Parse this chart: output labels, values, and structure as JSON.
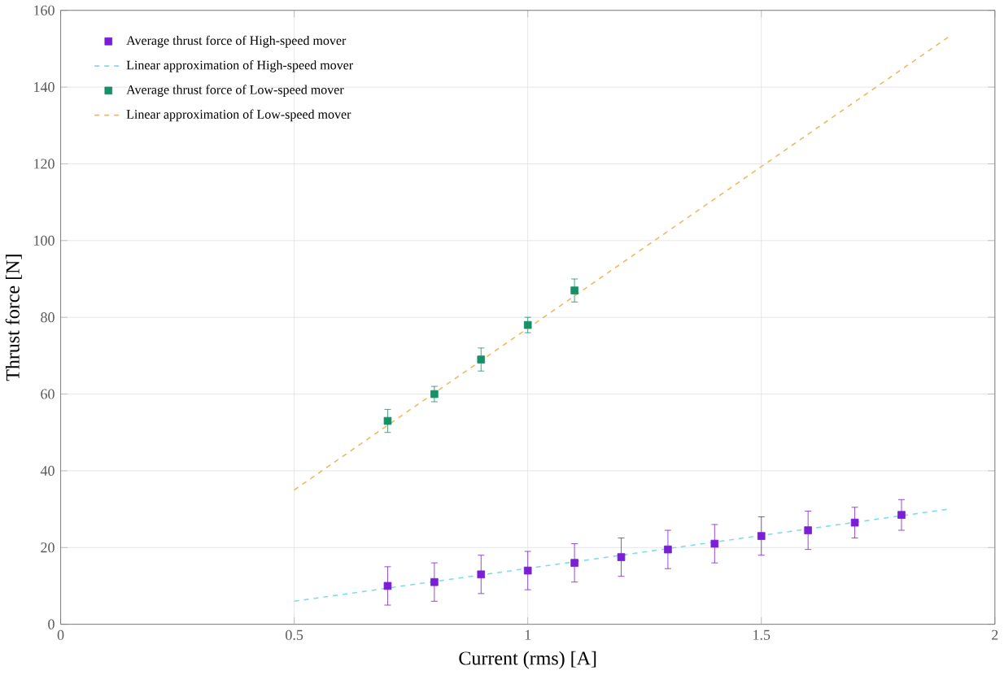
{
  "chart_data": {
    "type": "scatter",
    "xlabel": "Current (rms) [A]",
    "ylabel": "Thrust force [N]",
    "xlim": [
      0,
      2
    ],
    "ylim": [
      0,
      160
    ],
    "xticks": [
      0,
      0.5,
      1,
      1.5,
      2
    ],
    "yticks": [
      0,
      20,
      40,
      60,
      80,
      100,
      120,
      140,
      160
    ],
    "grid": true,
    "legend": "top left",
    "series": [
      {
        "name": "Average thrust force of High-speed mover",
        "marker": "square",
        "color": "#7a1fd6",
        "x": [
          0.7,
          0.8,
          0.9,
          1.0,
          1.1,
          1.2,
          1.3,
          1.4,
          1.5,
          1.6,
          1.7,
          1.8
        ],
        "values": [
          10,
          11,
          13,
          14,
          16,
          17.5,
          19.5,
          21,
          23,
          24.5,
          26.5,
          28.5
        ],
        "errors": [
          5,
          5,
          5,
          5,
          5,
          5,
          5,
          5,
          5,
          5,
          4,
          4
        ]
      },
      {
        "name": "Linear approximation of High-speed mover",
        "type": "line",
        "line_style": "dashed",
        "color": "#80dcec",
        "x": [
          0.5,
          1.9
        ],
        "values": [
          6,
          30
        ]
      },
      {
        "name": "Average thrust force of Low-speed mover",
        "marker": "square",
        "color": "#159068",
        "x": [
          0.7,
          0.8,
          0.9,
          1.0,
          1.1
        ],
        "values": [
          53,
          60,
          69,
          78,
          87
        ],
        "errors": [
          3,
          2,
          3,
          2,
          3
        ]
      },
      {
        "name": "Linear approximation of Low-speed mover",
        "type": "line",
        "line_style": "dashed",
        "color": "#f0b860",
        "x": [
          0.5,
          1.9
        ],
        "values": [
          35,
          153
        ]
      }
    ]
  }
}
